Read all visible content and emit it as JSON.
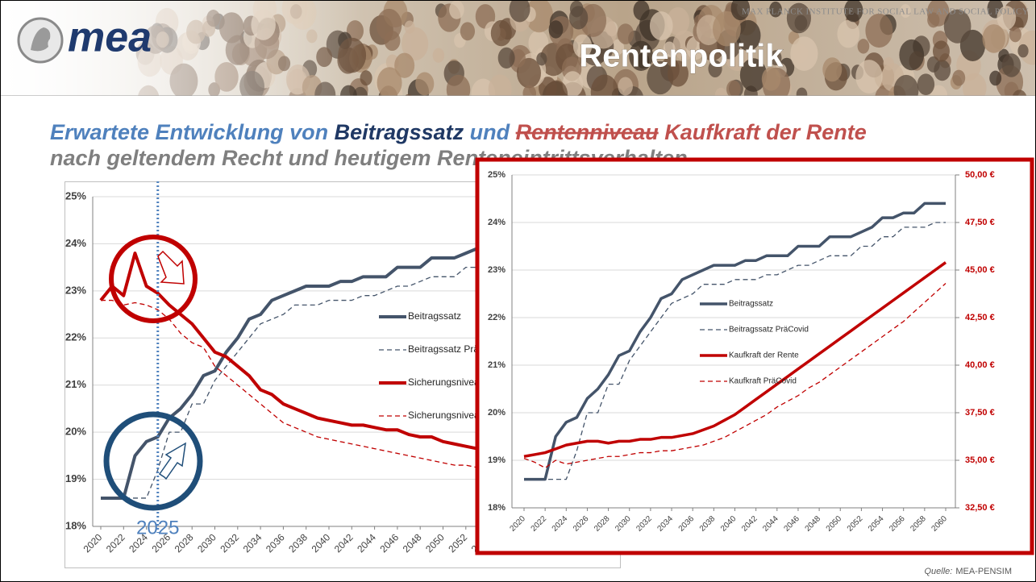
{
  "header": {
    "institute": "MAX PLANCK INSTITUTE FOR SOCIAL LAW AND SOCIAL POLICY",
    "logo": "mea",
    "title": "Rentenpolitik"
  },
  "subtitle": {
    "line1": [
      "Erwartete Entwicklung von ",
      "Beitragssatz",
      " und ",
      "Rentenniveau",
      " Kaufkraft der Rente"
    ],
    "line2": "nach geltendem Recht und heutigem Renteneintrittsverhalten"
  },
  "source": {
    "label": "Quelle:",
    "text": "MEA-PENSIM"
  },
  "chart_data": [
    {
      "type": "line",
      "x": [
        2020,
        2021,
        2022,
        2023,
        2024,
        2025,
        2026,
        2027,
        2028,
        2029,
        2030,
        2031,
        2032,
        2033,
        2034,
        2035,
        2036,
        2037,
        2038,
        2039,
        2040,
        2041,
        2042,
        2043,
        2044,
        2045,
        2046,
        2047,
        2048,
        2049,
        2050,
        2051,
        2052,
        2053,
        2054,
        2055,
        2056,
        2057,
        2058,
        2059,
        2060
      ],
      "xticks": [
        2020,
        2022,
        2024,
        2026,
        2028,
        2030,
        2032,
        2034,
        2036,
        2038,
        2040,
        2042,
        2044,
        2046,
        2048,
        2050,
        2052,
        2054,
        2056,
        2058,
        2060
      ],
      "ylim": [
        18,
        25
      ],
      "yticks": [
        {
          "value": 18,
          "label": "18%"
        },
        {
          "value": 19,
          "label": "19%"
        },
        {
          "value": 20,
          "label": "20%"
        },
        {
          "value": 21,
          "label": "21%"
        },
        {
          "value": 22,
          "label": "22%"
        },
        {
          "value": 23,
          "label": "23%"
        },
        {
          "value": 24,
          "label": "24%"
        },
        {
          "value": 25,
          "label": "25%"
        }
      ],
      "grid": true,
      "annotation": {
        "x": 2025
      },
      "series": [
        {
          "name": "Beitragssatz",
          "color": "#44546a",
          "dash": false,
          "values": [
            18.6,
            18.6,
            18.6,
            19.5,
            19.8,
            19.9,
            20.3,
            20.5,
            20.8,
            21.2,
            21.3,
            21.7,
            22.0,
            22.4,
            22.5,
            22.8,
            22.9,
            23.0,
            23.1,
            23.1,
            23.1,
            23.2,
            23.2,
            23.3,
            23.3,
            23.3,
            23.5,
            23.5,
            23.5,
            23.7,
            23.7,
            23.7,
            23.8,
            23.9,
            24.1,
            24.1,
            24.2,
            24.2,
            24.4,
            24.4,
            24.4
          ]
        },
        {
          "name": "Beitragssatz PräCovid",
          "color": "#44546a",
          "dash": true,
          "values": [
            18.6,
            18.6,
            18.6,
            18.6,
            18.6,
            19.2,
            20.0,
            20.0,
            20.6,
            20.6,
            21.1,
            21.4,
            21.7,
            22.0,
            22.3,
            22.4,
            22.5,
            22.7,
            22.7,
            22.7,
            22.8,
            22.8,
            22.8,
            22.9,
            22.9,
            23.0,
            23.1,
            23.1,
            23.2,
            23.3,
            23.3,
            23.3,
            23.5,
            23.5,
            23.7,
            23.7,
            23.9,
            23.9,
            23.9,
            24.0,
            24.0
          ]
        },
        {
          "name": "Sicherungsniveau",
          "color": "#c00000",
          "dash": false,
          "values": [
            22.8,
            23.1,
            22.9,
            23.8,
            23.1,
            22.95,
            22.7,
            22.5,
            22.3,
            22.0,
            21.7,
            21.6,
            21.4,
            21.2,
            20.9,
            20.8,
            20.6,
            20.5,
            20.4,
            20.3,
            20.25,
            20.2,
            20.15,
            20.15,
            20.1,
            20.05,
            20.05,
            19.95,
            19.9,
            19.9,
            19.8,
            19.75,
            19.7,
            19.65,
            19.6,
            19.55,
            19.5,
            19.45,
            19.4,
            19.35,
            19.3
          ]
        },
        {
          "name": "Sicherungsniveau PräCovid",
          "color": "#c00000",
          "dash": true,
          "values": [
            22.8,
            22.8,
            22.7,
            22.75,
            22.7,
            22.6,
            22.4,
            22.1,
            21.9,
            21.8,
            21.4,
            21.2,
            21.0,
            20.8,
            20.6,
            20.4,
            20.2,
            20.1,
            20.0,
            19.9,
            19.85,
            19.8,
            19.75,
            19.7,
            19.65,
            19.6,
            19.55,
            19.5,
            19.45,
            19.4,
            19.35,
            19.3,
            19.3,
            19.25,
            19.2,
            19.15,
            19.1,
            19.05,
            19.0,
            18.95,
            18.9
          ]
        }
      ]
    },
    {
      "type": "line",
      "x": [
        2020,
        2021,
        2022,
        2023,
        2024,
        2025,
        2026,
        2027,
        2028,
        2029,
        2030,
        2031,
        2032,
        2033,
        2034,
        2035,
        2036,
        2037,
        2038,
        2039,
        2040,
        2041,
        2042,
        2043,
        2044,
        2045,
        2046,
        2047,
        2048,
        2049,
        2050,
        2051,
        2052,
        2053,
        2054,
        2055,
        2056,
        2057,
        2058,
        2059,
        2060
      ],
      "xticks": [
        2020,
        2022,
        2024,
        2026,
        2028,
        2030,
        2032,
        2034,
        2036,
        2038,
        2040,
        2042,
        2044,
        2046,
        2048,
        2050,
        2052,
        2054,
        2056,
        2058,
        2060
      ],
      "ylim": [
        18,
        25
      ],
      "yticks": [
        {
          "value": 18,
          "label": "18%"
        },
        {
          "value": 19,
          "label": "19%"
        },
        {
          "value": 20,
          "label": "20%"
        },
        {
          "value": 21,
          "label": "21%"
        },
        {
          "value": 22,
          "label": "22%"
        },
        {
          "value": 23,
          "label": "23%"
        },
        {
          "value": 24,
          "label": "24%"
        },
        {
          "value": 25,
          "label": "25%"
        }
      ],
      "y2lim": [
        32.5,
        50
      ],
      "y2ticks": [
        {
          "value": 32.5,
          "label": "32,50 €"
        },
        {
          "value": 35,
          "label": "35,00 €"
        },
        {
          "value": 37.5,
          "label": "37,50 €"
        },
        {
          "value": 40,
          "label": "40,00 €"
        },
        {
          "value": 42.5,
          "label": "42,50 €"
        },
        {
          "value": 45,
          "label": "45,00 €"
        },
        {
          "value": 47.5,
          "label": "47,50 €"
        },
        {
          "value": 50,
          "label": "50,00 €"
        }
      ],
      "grid": true,
      "series": [
        {
          "name": "Beitragssatz",
          "color": "#44546a",
          "dash": false,
          "values": [
            18.6,
            18.6,
            18.6,
            19.5,
            19.8,
            19.9,
            20.3,
            20.5,
            20.8,
            21.2,
            21.3,
            21.7,
            22.0,
            22.4,
            22.5,
            22.8,
            22.9,
            23.0,
            23.1,
            23.1,
            23.1,
            23.2,
            23.2,
            23.3,
            23.3,
            23.3,
            23.5,
            23.5,
            23.5,
            23.7,
            23.7,
            23.7,
            23.8,
            23.9,
            24.1,
            24.1,
            24.2,
            24.2,
            24.4,
            24.4,
            24.4
          ]
        },
        {
          "name": "Beitragssatz PräCovid",
          "color": "#44546a",
          "dash": true,
          "values": [
            18.6,
            18.6,
            18.6,
            18.6,
            18.6,
            19.2,
            20.0,
            20.0,
            20.6,
            20.6,
            21.1,
            21.4,
            21.7,
            22.0,
            22.3,
            22.4,
            22.5,
            22.7,
            22.7,
            22.7,
            22.8,
            22.8,
            22.8,
            22.9,
            22.9,
            23.0,
            23.1,
            23.1,
            23.2,
            23.3,
            23.3,
            23.3,
            23.5,
            23.5,
            23.7,
            23.7,
            23.9,
            23.9,
            23.9,
            24.0,
            24.0
          ]
        },
        {
          "name": "Kaufkraft der Rente",
          "color": "#c00000",
          "dash": false,
          "axis": "y2",
          "values": [
            35.2,
            35.3,
            35.4,
            35.6,
            35.8,
            35.9,
            36.0,
            36.0,
            35.9,
            36.0,
            36.0,
            36.1,
            36.1,
            36.2,
            36.2,
            36.3,
            36.4,
            36.6,
            36.8,
            37.1,
            37.4,
            37.8,
            38.2,
            38.6,
            39.0,
            39.4,
            39.8,
            40.2,
            40.6,
            41.0,
            41.4,
            41.8,
            42.2,
            42.6,
            43.0,
            43.4,
            43.8,
            44.2,
            44.6,
            45.0,
            45.4
          ]
        },
        {
          "name": "Kaufkraft PräCovid",
          "color": "#c00000",
          "dash": true,
          "axis": "y2",
          "values": [
            35.1,
            34.9,
            34.6,
            35.0,
            34.8,
            34.9,
            35.0,
            35.1,
            35.2,
            35.2,
            35.3,
            35.4,
            35.4,
            35.5,
            35.5,
            35.6,
            35.7,
            35.8,
            36.0,
            36.2,
            36.5,
            36.8,
            37.1,
            37.4,
            37.8,
            38.1,
            38.4,
            38.8,
            39.1,
            39.5,
            39.9,
            40.3,
            40.7,
            41.1,
            41.5,
            41.9,
            42.3,
            42.8,
            43.3,
            43.8,
            44.3
          ]
        }
      ]
    }
  ]
}
